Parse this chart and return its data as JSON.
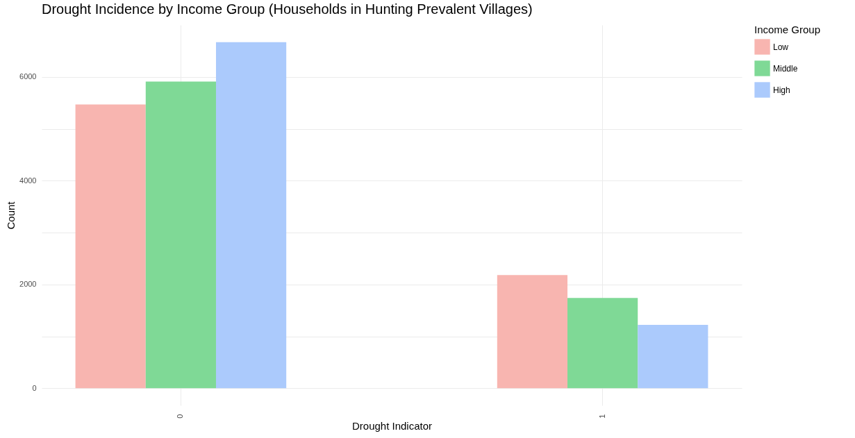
{
  "chart_data": {
    "type": "bar",
    "title": "Drought Incidence by Income Group (Households in Hunting Prevalent Villages)",
    "xlabel": "Drought Indicator",
    "ylabel": "Count",
    "legend_title": "Income Group",
    "categories": [
      "0",
      "1"
    ],
    "series": [
      {
        "name": "Low",
        "color": "#f8b5b0",
        "values": [
          5470,
          2180
        ]
      },
      {
        "name": "Middle",
        "color": "#7fd996",
        "values": [
          5910,
          1740
        ]
      },
      {
        "name": "High",
        "color": "#abcafc",
        "values": [
          6670,
          1220
        ]
      }
    ],
    "ylim": [
      -330,
      7000
    ],
    "yticks": [
      0,
      {
        "value": 1000,
        "label": null
      },
      2000,
      {
        "value": 3000,
        "label": null
      },
      4000,
      {
        "value": 5000,
        "label": null
      },
      6000
    ],
    "grid": true,
    "legend": "right"
  }
}
